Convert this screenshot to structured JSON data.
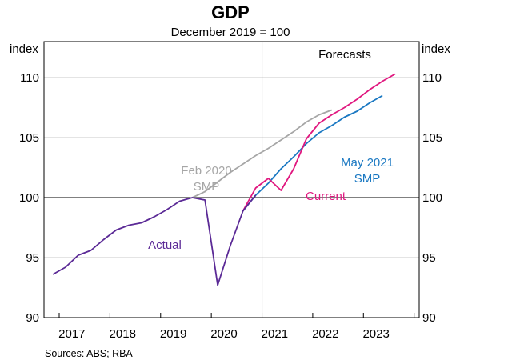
{
  "chart_data": {
    "type": "line",
    "title": "GDP",
    "subtitle": "December 2019 = 100",
    "ylabel_left": "index",
    "ylabel_right": "index",
    "ylim": [
      90,
      113
    ],
    "yticks": [
      90,
      95,
      100,
      105,
      110
    ],
    "xlim": [
      2016.7,
      2024.1
    ],
    "xticks": [
      {
        "label": "2017",
        "x": 2017.25
      },
      {
        "label": "2018",
        "x": 2018.25
      },
      {
        "label": "2019",
        "x": 2019.25
      },
      {
        "label": "2020",
        "x": 2020.25
      },
      {
        "label": "2021",
        "x": 2021.25
      },
      {
        "label": "2022",
        "x": 2022.25
      },
      {
        "label": "2023",
        "x": 2023.25
      }
    ],
    "grid": true,
    "reference_line_y": 100,
    "forecast_start_x": 2021.0,
    "forecast_label": "Forecasts",
    "source_note": "Sources: ABS; RBA",
    "series": [
      {
        "name": "Actual",
        "label_lines": [
          "Actual"
        ],
        "color": "#5b2a96",
        "points": [
          [
            2016.875,
            93.6
          ],
          [
            2017.125,
            94.2
          ],
          [
            2017.375,
            95.2
          ],
          [
            2017.625,
            95.6
          ],
          [
            2017.875,
            96.5
          ],
          [
            2018.125,
            97.3
          ],
          [
            2018.375,
            97.7
          ],
          [
            2018.625,
            97.9
          ],
          [
            2018.875,
            98.4
          ],
          [
            2019.125,
            99.0
          ],
          [
            2019.375,
            99.7
          ],
          [
            2019.625,
            100.0
          ],
          [
            2019.875,
            99.8
          ],
          [
            2020.125,
            92.7
          ],
          [
            2020.375,
            96.0
          ],
          [
            2020.625,
            98.9
          ],
          [
            2020.875,
            100.2
          ]
        ]
      },
      {
        "name": "Feb 2020 SMP",
        "label_lines": [
          "Feb 2020",
          "SMP"
        ],
        "color": "#a6a6a6",
        "points": [
          [
            2019.625,
            100.0
          ],
          [
            2019.875,
            100.5
          ],
          [
            2020.125,
            101.3
          ],
          [
            2020.375,
            102.1
          ],
          [
            2020.625,
            102.8
          ],
          [
            2020.875,
            103.5
          ],
          [
            2021.125,
            104.1
          ],
          [
            2021.375,
            104.8
          ],
          [
            2021.625,
            105.5
          ],
          [
            2021.875,
            106.3
          ],
          [
            2022.125,
            106.9
          ],
          [
            2022.375,
            107.3
          ]
        ]
      },
      {
        "name": "Current",
        "label_lines": [
          "Current"
        ],
        "color": "#e0177f",
        "points": [
          [
            2020.625,
            98.9
          ],
          [
            2020.875,
            100.8
          ],
          [
            2021.125,
            101.6
          ],
          [
            2021.375,
            100.6
          ],
          [
            2021.625,
            102.4
          ],
          [
            2021.875,
            104.9
          ],
          [
            2022.125,
            106.2
          ],
          [
            2022.375,
            106.9
          ],
          [
            2022.625,
            107.5
          ],
          [
            2022.875,
            108.2
          ],
          [
            2023.125,
            109.0
          ],
          [
            2023.375,
            109.7
          ],
          [
            2023.625,
            110.3
          ]
        ]
      },
      {
        "name": "May 2021 SMP",
        "label_lines": [
          "May 2021",
          "SMP"
        ],
        "color": "#1a78c2",
        "points": [
          [
            2020.625,
            98.9
          ],
          [
            2020.875,
            100.2
          ],
          [
            2021.125,
            101.2
          ],
          [
            2021.375,
            102.4
          ],
          [
            2021.625,
            103.4
          ],
          [
            2021.875,
            104.5
          ],
          [
            2022.125,
            105.4
          ],
          [
            2022.375,
            106.0
          ],
          [
            2022.625,
            106.7
          ],
          [
            2022.875,
            107.2
          ],
          [
            2023.125,
            107.9
          ],
          [
            2023.375,
            108.5
          ]
        ]
      }
    ]
  }
}
